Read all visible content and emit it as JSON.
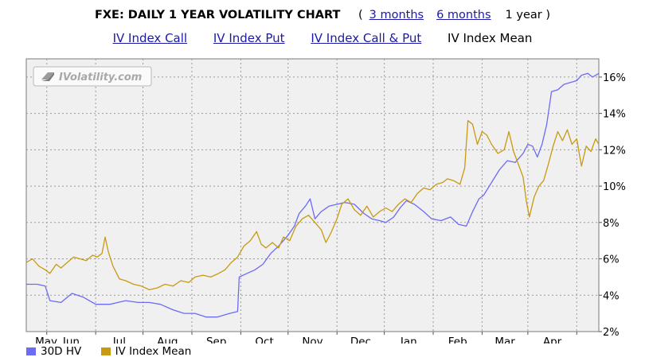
{
  "header": {
    "title": "FXE: DAILY 1 YEAR VOLATILITY CHART",
    "open_paren": "(",
    "range_3m": "3 months",
    "range_6m": "6 months",
    "range_1y": "1 year",
    "close_paren": ")"
  },
  "nav": {
    "call": "IV Index Call",
    "put": "IV Index Put",
    "call_put": "IV Index Call & Put",
    "mean": "IV Index Mean"
  },
  "watermark": "IVolatility.com",
  "colors": {
    "hv": "#6b6bf5",
    "iv_mean": "#c89a10",
    "plot_bg": "#f0f0f0",
    "grid": "#9a9a9a"
  },
  "chart_data": {
    "type": "line",
    "grid": true,
    "y_axis_side": "right",
    "legend_position": "bottom-left",
    "ylim": [
      2,
      17
    ],
    "y_ticks": [
      "2%",
      "4%",
      "6%",
      "8%",
      "10%",
      "12%",
      "14%",
      "16%"
    ],
    "x_range": [
      "2007-04-18",
      "2008-04-15"
    ],
    "x_ticks": [
      {
        "label": "May",
        "date": "2007-05-01"
      },
      {
        "label": "Jun",
        "date": "2007-06-01"
      },
      {
        "label": "Jul",
        "date": "2007-07-01"
      },
      {
        "label": "Aug",
        "date": "2007-08-01"
      },
      {
        "label": "Sep",
        "date": "2007-09-01"
      },
      {
        "label": "Oct",
        "date": "2007-10-01"
      },
      {
        "label": "Nov",
        "date": "2007-11-01"
      },
      {
        "label": "Dec",
        "date": "2007-12-01"
      },
      {
        "label": "Jan",
        "date": "2008-01-01"
      },
      {
        "label": "Feb",
        "date": "2008-02-01"
      },
      {
        "label": "Mar",
        "date": "2008-03-01"
      },
      {
        "label": "Apr",
        "date": "2008-04-01"
      }
    ],
    "series": [
      {
        "name": "30D HV",
        "color": "#6b6bf5",
        "points": [
          [
            "2007-04-18",
            4.6
          ],
          [
            "2007-04-25",
            4.6
          ],
          [
            "2007-04-30",
            4.5
          ],
          [
            "2007-05-03",
            3.7
          ],
          [
            "2007-05-10",
            3.6
          ],
          [
            "2007-05-17",
            4.1
          ],
          [
            "2007-05-24",
            3.9
          ],
          [
            "2007-06-01",
            3.5
          ],
          [
            "2007-06-10",
            3.5
          ],
          [
            "2007-06-20",
            3.7
          ],
          [
            "2007-06-28",
            3.6
          ],
          [
            "2007-07-05",
            3.6
          ],
          [
            "2007-07-12",
            3.5
          ],
          [
            "2007-07-20",
            3.2
          ],
          [
            "2007-07-27",
            3.0
          ],
          [
            "2007-08-03",
            3.0
          ],
          [
            "2007-08-10",
            2.8
          ],
          [
            "2007-08-17",
            2.8
          ],
          [
            "2007-08-25",
            3.0
          ],
          [
            "2007-08-30",
            3.1
          ],
          [
            "2007-08-31",
            5.0
          ],
          [
            "2007-09-05",
            5.2
          ],
          [
            "2007-09-10",
            5.4
          ],
          [
            "2007-09-15",
            5.7
          ],
          [
            "2007-09-20",
            6.3
          ],
          [
            "2007-09-25",
            6.7
          ],
          [
            "2007-10-01",
            7.3
          ],
          [
            "2007-10-05",
            7.8
          ],
          [
            "2007-10-08",
            8.5
          ],
          [
            "2007-10-12",
            8.9
          ],
          [
            "2007-10-15",
            9.3
          ],
          [
            "2007-10-18",
            8.2
          ],
          [
            "2007-10-22",
            8.6
          ],
          [
            "2007-10-27",
            8.9
          ],
          [
            "2007-11-01",
            9.0
          ],
          [
            "2007-11-06",
            9.1
          ],
          [
            "2007-11-12",
            9.0
          ],
          [
            "2007-11-18",
            8.5
          ],
          [
            "2007-11-23",
            8.2
          ],
          [
            "2007-11-28",
            8.1
          ],
          [
            "2007-12-02",
            8.0
          ],
          [
            "2007-12-07",
            8.3
          ],
          [
            "2007-12-11",
            8.8
          ],
          [
            "2007-12-15",
            9.2
          ],
          [
            "2007-12-20",
            9.0
          ],
          [
            "2007-12-26",
            8.6
          ],
          [
            "2007-12-31",
            8.2
          ],
          [
            "2008-01-06",
            8.1
          ],
          [
            "2008-01-12",
            8.3
          ],
          [
            "2008-01-17",
            7.9
          ],
          [
            "2008-01-22",
            7.8
          ],
          [
            "2008-01-26",
            8.6
          ],
          [
            "2008-01-30",
            9.3
          ],
          [
            "2008-02-02",
            9.5
          ],
          [
            "2008-02-07",
            10.2
          ],
          [
            "2008-02-12",
            10.9
          ],
          [
            "2008-02-17",
            11.4
          ],
          [
            "2008-02-22",
            11.3
          ],
          [
            "2008-02-27",
            11.8
          ],
          [
            "2008-03-01",
            12.3
          ],
          [
            "2008-03-04",
            12.2
          ],
          [
            "2008-03-07",
            11.6
          ],
          [
            "2008-03-10",
            12.3
          ],
          [
            "2008-03-13",
            13.4
          ],
          [
            "2008-03-16",
            15.2
          ],
          [
            "2008-03-20",
            15.3
          ],
          [
            "2008-03-24",
            15.6
          ],
          [
            "2008-03-28",
            15.7
          ],
          [
            "2008-04-01",
            15.8
          ],
          [
            "2008-04-04",
            16.1
          ],
          [
            "2008-04-08",
            16.2
          ],
          [
            "2008-04-11",
            16.0
          ],
          [
            "2008-04-15",
            16.2
          ]
        ]
      },
      {
        "name": "IV Index Mean",
        "color": "#c89a10",
        "points": [
          [
            "2007-04-18",
            5.8
          ],
          [
            "2007-04-22",
            6.0
          ],
          [
            "2007-04-26",
            5.6
          ],
          [
            "2007-04-30",
            5.4
          ],
          [
            "2007-05-03",
            5.2
          ],
          [
            "2007-05-07",
            5.7
          ],
          [
            "2007-05-10",
            5.5
          ],
          [
            "2007-05-14",
            5.8
          ],
          [
            "2007-05-18",
            6.1
          ],
          [
            "2007-05-22",
            6.0
          ],
          [
            "2007-05-26",
            5.9
          ],
          [
            "2007-05-30",
            6.2
          ],
          [
            "2007-06-02",
            6.1
          ],
          [
            "2007-06-05",
            6.3
          ],
          [
            "2007-06-07",
            7.2
          ],
          [
            "2007-06-09",
            6.4
          ],
          [
            "2007-06-12",
            5.6
          ],
          [
            "2007-06-16",
            4.9
          ],
          [
            "2007-06-20",
            4.8
          ],
          [
            "2007-06-25",
            4.6
          ],
          [
            "2007-06-30",
            4.5
          ],
          [
            "2007-07-05",
            4.3
          ],
          [
            "2007-07-10",
            4.4
          ],
          [
            "2007-07-15",
            4.6
          ],
          [
            "2007-07-20",
            4.5
          ],
          [
            "2007-07-25",
            4.8
          ],
          [
            "2007-07-30",
            4.7
          ],
          [
            "2007-08-03",
            5.0
          ],
          [
            "2007-08-08",
            5.1
          ],
          [
            "2007-08-13",
            5.0
          ],
          [
            "2007-08-18",
            5.2
          ],
          [
            "2007-08-22",
            5.4
          ],
          [
            "2007-08-26",
            5.8
          ],
          [
            "2007-08-30",
            6.1
          ],
          [
            "2007-09-03",
            6.7
          ],
          [
            "2007-09-07",
            7.0
          ],
          [
            "2007-09-11",
            7.5
          ],
          [
            "2007-09-14",
            6.8
          ],
          [
            "2007-09-17",
            6.6
          ],
          [
            "2007-09-21",
            6.9
          ],
          [
            "2007-09-25",
            6.6
          ],
          [
            "2007-09-28",
            7.2
          ],
          [
            "2007-10-02",
            7.0
          ],
          [
            "2007-10-06",
            7.8
          ],
          [
            "2007-10-10",
            8.2
          ],
          [
            "2007-10-14",
            8.4
          ],
          [
            "2007-10-18",
            8.0
          ],
          [
            "2007-10-22",
            7.6
          ],
          [
            "2007-10-25",
            6.9
          ],
          [
            "2007-10-28",
            7.4
          ],
          [
            "2007-11-01",
            8.2
          ],
          [
            "2007-11-04",
            9.0
          ],
          [
            "2007-11-08",
            9.3
          ],
          [
            "2007-11-12",
            8.7
          ],
          [
            "2007-11-16",
            8.4
          ],
          [
            "2007-11-20",
            8.9
          ],
          [
            "2007-11-24",
            8.3
          ],
          [
            "2007-11-28",
            8.6
          ],
          [
            "2007-12-02",
            8.8
          ],
          [
            "2007-12-06",
            8.6
          ],
          [
            "2007-12-10",
            9.0
          ],
          [
            "2007-12-14",
            9.3
          ],
          [
            "2007-12-18",
            9.1
          ],
          [
            "2007-12-22",
            9.6
          ],
          [
            "2007-12-26",
            9.9
          ],
          [
            "2007-12-30",
            9.8
          ],
          [
            "2008-01-03",
            10.1
          ],
          [
            "2008-01-07",
            10.2
          ],
          [
            "2008-01-10",
            10.4
          ],
          [
            "2008-01-14",
            10.3
          ],
          [
            "2008-01-18",
            10.1
          ],
          [
            "2008-01-21",
            11.0
          ],
          [
            "2008-01-23",
            13.6
          ],
          [
            "2008-01-26",
            13.4
          ],
          [
            "2008-01-29",
            12.3
          ],
          [
            "2008-02-01",
            13.0
          ],
          [
            "2008-02-04",
            12.8
          ],
          [
            "2008-02-07",
            12.3
          ],
          [
            "2008-02-11",
            11.8
          ],
          [
            "2008-02-15",
            12.0
          ],
          [
            "2008-02-18",
            13.0
          ],
          [
            "2008-02-21",
            11.9
          ],
          [
            "2008-02-24",
            11.2
          ],
          [
            "2008-02-27",
            10.5
          ],
          [
            "2008-02-29",
            9.2
          ],
          [
            "2008-03-02",
            8.3
          ],
          [
            "2008-03-05",
            9.4
          ],
          [
            "2008-03-08",
            10.0
          ],
          [
            "2008-03-11",
            10.3
          ],
          [
            "2008-03-14",
            11.2
          ],
          [
            "2008-03-17",
            12.2
          ],
          [
            "2008-03-20",
            13.0
          ],
          [
            "2008-03-23",
            12.5
          ],
          [
            "2008-03-26",
            13.1
          ],
          [
            "2008-03-29",
            12.3
          ],
          [
            "2008-04-01",
            12.6
          ],
          [
            "2008-04-04",
            11.1
          ],
          [
            "2008-04-07",
            12.2
          ],
          [
            "2008-04-10",
            11.9
          ],
          [
            "2008-04-13",
            12.6
          ],
          [
            "2008-04-15",
            12.3
          ]
        ]
      }
    ]
  }
}
